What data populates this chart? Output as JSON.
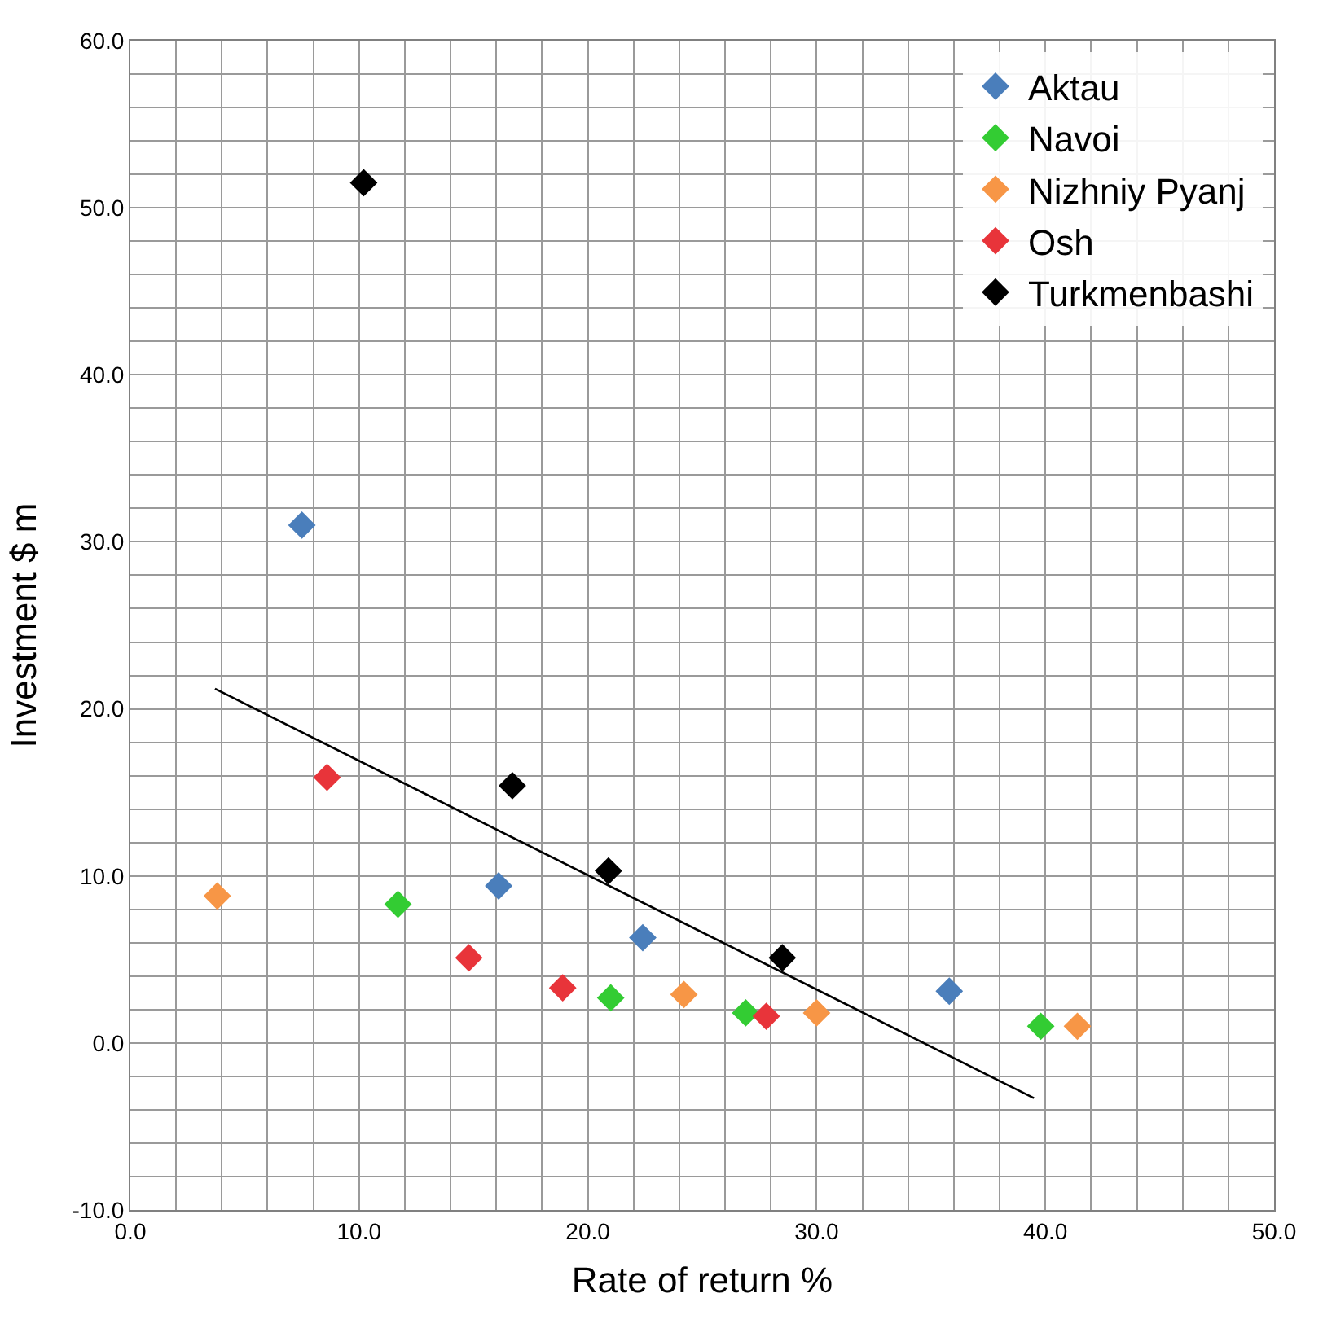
{
  "chart_data": {
    "type": "scatter",
    "xlabel": "Rate of return %",
    "ylabel": "Investment $ m",
    "series": [
      {
        "name": "Aktau",
        "color": "#4a7ebb",
        "x": [
          7.5,
          16.1,
          22.4,
          35.8
        ],
        "values": [
          31.0,
          9.4,
          6.3,
          3.1
        ]
      },
      {
        "name": "Navoi",
        "color": "#33cc33",
        "x": [
          11.7,
          21.0,
          26.9,
          39.8
        ],
        "values": [
          8.3,
          2.7,
          1.8,
          1.0
        ]
      },
      {
        "name": "Nizhniy Pyanj",
        "color": "#f79646",
        "x": [
          3.8,
          24.2,
          30.0,
          41.4
        ],
        "values": [
          8.8,
          2.9,
          1.8,
          1.0
        ]
      },
      {
        "name": "Osh",
        "color": "#e8343a",
        "x": [
          8.6,
          14.8,
          18.9,
          27.8
        ],
        "values": [
          15.9,
          5.1,
          3.3,
          1.6
        ]
      },
      {
        "name": "Turkmenbashi",
        "color": "#000000",
        "x": [
          10.2,
          16.7,
          20.9,
          28.5
        ],
        "values": [
          51.5,
          15.4,
          10.3,
          5.1
        ]
      },
      {
        "type": "line",
        "color": "#000000",
        "x": [
          3.7,
          39.5
        ],
        "values": [
          21.2,
          -3.3
        ],
        "marker": "none"
      }
    ],
    "marker": "diamond",
    "legend": "top right",
    "grid": true,
    "xlim": [
      0,
      50
    ],
    "ylim": [
      -10,
      60
    ],
    "xticks": [
      {
        "value": 0,
        "label": "0.0"
      },
      {
        "value": 2,
        "label": null
      },
      {
        "value": 4,
        "label": null
      },
      {
        "value": 6,
        "label": null
      },
      {
        "value": 8,
        "label": null
      },
      {
        "value": 10,
        "label": "10.0"
      },
      {
        "value": 12,
        "label": null
      },
      {
        "value": 14,
        "label": null
      },
      {
        "value": 16,
        "label": null
      },
      {
        "value": 18,
        "label": null
      },
      {
        "value": 20,
        "label": "20.0"
      },
      {
        "value": 22,
        "label": null
      },
      {
        "value": 24,
        "label": null
      },
      {
        "value": 26,
        "label": null
      },
      {
        "value": 28,
        "label": null
      },
      {
        "value": 30,
        "label": "30.0"
      },
      {
        "value": 32,
        "label": null
      },
      {
        "value": 34,
        "label": null
      },
      {
        "value": 36,
        "label": null
      },
      {
        "value": 38,
        "label": null
      },
      {
        "value": 40,
        "label": "40.0"
      },
      {
        "value": 42,
        "label": null
      },
      {
        "value": 44,
        "label": null
      },
      {
        "value": 46,
        "label": null
      },
      {
        "value": 48,
        "label": null
      },
      {
        "value": 50,
        "label": "50.0"
      }
    ],
    "yticks": [
      {
        "value": -10,
        "label": "-10.0"
      },
      {
        "value": -8,
        "label": null
      },
      {
        "value": -6,
        "label": null
      },
      {
        "value": -4,
        "label": null
      },
      {
        "value": -2,
        "label": null
      },
      {
        "value": 0,
        "label": "0.0"
      },
      {
        "value": 2,
        "label": null
      },
      {
        "value": 4,
        "label": null
      },
      {
        "value": 6,
        "label": null
      },
      {
        "value": 8,
        "label": null
      },
      {
        "value": 10,
        "label": "10.0"
      },
      {
        "value": 12,
        "label": null
      },
      {
        "value": 14,
        "label": null
      },
      {
        "value": 16,
        "label": null
      },
      {
        "value": 18,
        "label": null
      },
      {
        "value": 20,
        "label": "20.0"
      },
      {
        "value": 22,
        "label": null
      },
      {
        "value": 24,
        "label": null
      },
      {
        "value": 26,
        "label": null
      },
      {
        "value": 28,
        "label": null
      },
      {
        "value": 30,
        "label": "30.0"
      },
      {
        "value": 32,
        "label": null
      },
      {
        "value": 34,
        "label": null
      },
      {
        "value": 36,
        "label": null
      },
      {
        "value": 38,
        "label": null
      },
      {
        "value": 40,
        "label": "40.0"
      },
      {
        "value": 42,
        "label": null
      },
      {
        "value": 44,
        "label": null
      },
      {
        "value": 46,
        "label": null
      },
      {
        "value": 48,
        "label": null
      },
      {
        "value": 50,
        "label": "50.0"
      },
      {
        "value": 52,
        "label": null
      },
      {
        "value": 54,
        "label": null
      },
      {
        "value": 56,
        "label": null
      },
      {
        "value": 58,
        "label": null
      },
      {
        "value": 60,
        "label": "60.0"
      }
    ]
  }
}
